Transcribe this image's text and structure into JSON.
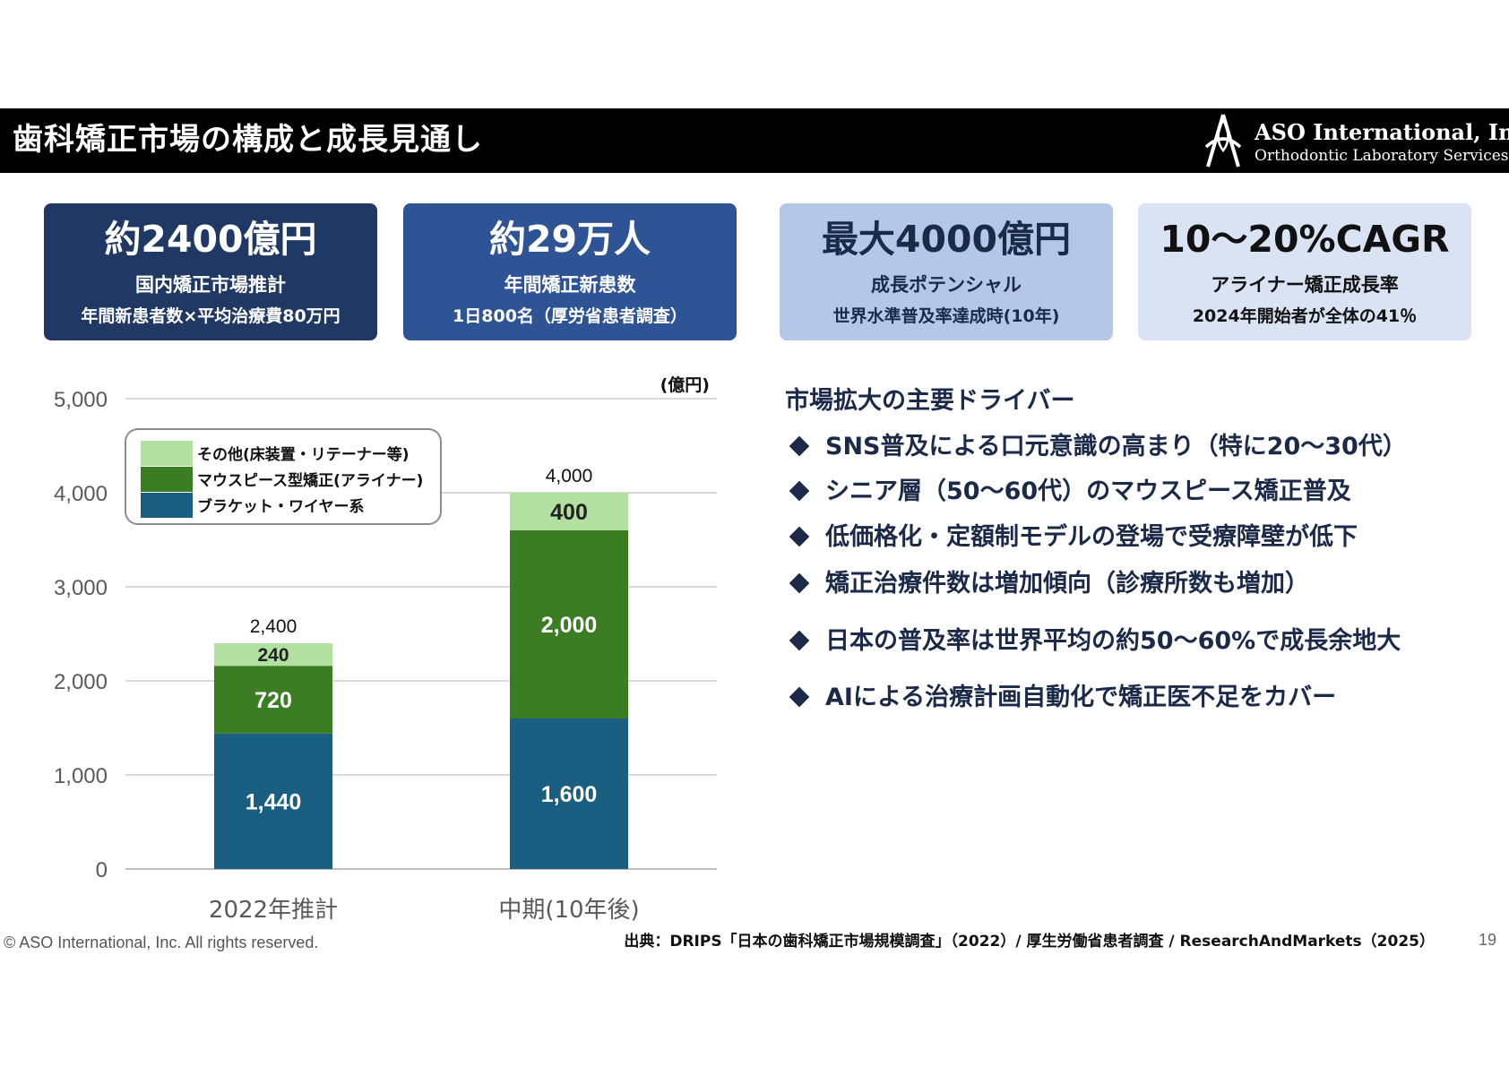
{
  "header": {
    "title": "歯科矯正市場の構成と成長見通し",
    "brand_name": "ASO International, Inc.",
    "brand_sub": "Orthodontic Laboratory Services",
    "logo_icon": "aso-logo-icon"
  },
  "kpis": [
    {
      "value": "約2400億円",
      "label": "国内矯正市場推計",
      "note": "年間新患者数×平均治療費80万円",
      "bg": "#1f3864",
      "fg": "#ffffff"
    },
    {
      "value": "約29万人",
      "label": "年間矯正新患数",
      "note": "1日800名（厚労省患者調査）",
      "bg": "#2f5496",
      "fg": "#ffffff"
    },
    {
      "value": "最大4000億円",
      "label": "成長ポテンシャル",
      "note": "世界水準普及率達成時(10年)",
      "bg": "#b4c7e7",
      "fg": "#1c2a4a"
    },
    {
      "value": "10～20%CAGR",
      "label": "アライナー矯正成長率",
      "note": "2024年開始者が全体の41％",
      "bg": "#dae3f3",
      "fg": "#111111"
    }
  ],
  "chart_data": {
    "type": "bar",
    "stacked": true,
    "unit_label": "(億円)",
    "categories": [
      "2022年推計",
      "中期(10年後)"
    ],
    "series": [
      {
        "name": "ブラケット・ワイヤー系",
        "values": [
          1440,
          1600
        ],
        "color": "#1a5e82",
        "label_color": "#ffffff"
      },
      {
        "name": "マウスピース型矯正(アライナー)",
        "values": [
          720,
          2000
        ],
        "color": "#3a7d22",
        "label_color": "#ffffff"
      },
      {
        "name": "その他(床装置・リテーナー等)",
        "values": [
          240,
          400
        ],
        "color": "#b2e0a0",
        "label_color": "#222222"
      }
    ],
    "totals": [
      "2,400",
      "4,000"
    ],
    "segment_labels": [
      [
        "1,440",
        "720",
        "240"
      ],
      [
        "1,600",
        "2,000",
        "400"
      ]
    ],
    "yticks": [
      "0",
      "1,000",
      "2,000",
      "3,000",
      "4,000",
      "5,000"
    ],
    "ylim": [
      0,
      5000
    ],
    "grid": true,
    "legend_position": "top-left"
  },
  "drivers": {
    "title": "市場拡大の主要ドライバー",
    "bullet_icon": "diamond-bullet-icon",
    "items": [
      "SNS普及による口元意識の高まり（特に20～30代）",
      "シニア層（50～60代）のマウスピース矯正普及",
      "低価格化・定額制モデルの登場で受療障壁が低下",
      "矯正治療件数は増加傾向（診療所数も増加）",
      "日本の普及率は世界平均の約50～60%で成長余地大",
      "AIによる治療計画自動化で矯正医不足をカバー"
    ]
  },
  "footer": {
    "copyright": "© ASO International, Inc. All rights reserved.",
    "source": "出典：DRIPS「日本の歯科矯正市場規模調査」（2022）/ 厚生労働省患者調査 / ResearchAndMarkets（2025）",
    "page_number": "19"
  }
}
